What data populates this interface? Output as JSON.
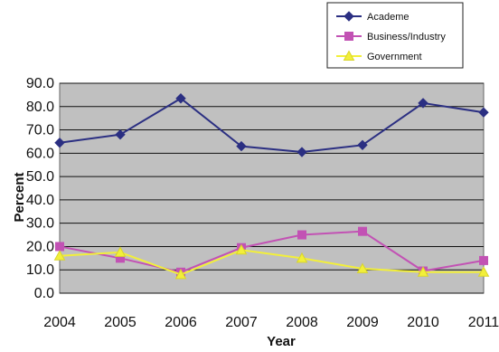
{
  "chart_data": {
    "type": "line",
    "title": "",
    "xlabel": "Year",
    "ylabel": "Percent",
    "x": [
      "2004",
      "2005",
      "2006",
      "2007",
      "2008",
      "2009",
      "2010",
      "2011"
    ],
    "ylim": [
      0,
      90
    ],
    "yticks": [
      "0.0",
      "10.0",
      "20.0",
      "30.0",
      "40.0",
      "50.0",
      "60.0",
      "70.0",
      "80.0",
      "90.0"
    ],
    "grid": true,
    "legend_position": "top-right",
    "plot_background": "#c0c0c0",
    "series": [
      {
        "name": "Academe",
        "color": "#2b2f82",
        "marker": "diamond",
        "values": [
          64.5,
          68.0,
          83.5,
          63.0,
          60.5,
          63.5,
          81.5,
          77.5
        ]
      },
      {
        "name": "Business/Industry",
        "color": "#c252b4",
        "marker": "square",
        "values": [
          20.0,
          15.0,
          9.0,
          19.5,
          25.0,
          26.5,
          9.5,
          14.0
        ]
      },
      {
        "name": "Government",
        "color": "#f2ef3a",
        "marker": "triangle",
        "values": [
          16.0,
          17.5,
          8.0,
          18.5,
          15.0,
          10.5,
          9.0,
          9.0
        ]
      }
    ]
  }
}
